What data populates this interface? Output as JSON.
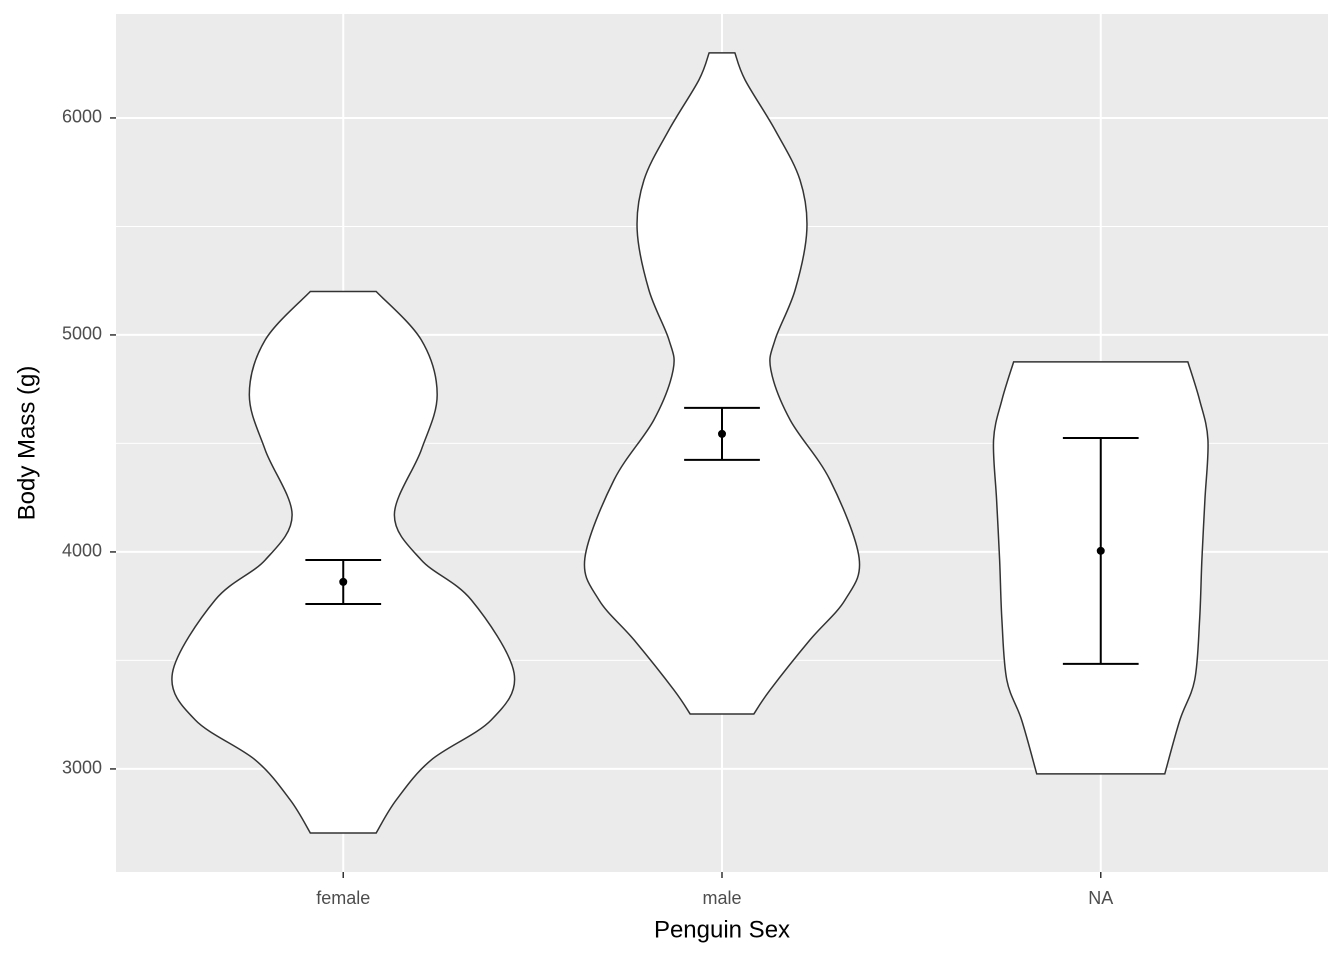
{
  "chart_data": {
    "type": "violin",
    "x_label": "Penguin Sex",
    "y_label": "Body Mass (g)",
    "categories": [
      "female",
      "male",
      "NA"
    ],
    "ylim": [
      2525,
      6479
    ],
    "yticks": [
      3000,
      4000,
      5000,
      6000
    ],
    "y_minor_ticks": [
      3500,
      4500,
      5500
    ],
    "grid": true,
    "violin_fill": "#ffffff",
    "violin_stroke": "#333333",
    "errorbar_color": "#000000",
    "errorbar_half_width": 0.1,
    "mean": [
      3862,
      4544,
      4005
    ],
    "upper": [
      3963,
      4664,
      4525
    ],
    "lower": [
      3760,
      4424,
      3484
    ],
    "violins": [
      {
        "y": [
          5200,
          4977,
          4724,
          4470,
          4171,
          3963,
          3779,
          3442,
          3226,
          3041,
          2857,
          2705
        ],
        "half_width": [
          0.087,
          0.206,
          0.248,
          0.206,
          0.135,
          0.206,
          0.338,
          0.451,
          0.391,
          0.232,
          0.14,
          0.087
        ]
      },
      {
        "y": [
          6300,
          6175,
          5945,
          5714,
          5484,
          5207,
          4977,
          4839,
          4608,
          4332,
          3972,
          3779,
          3594,
          3364,
          3253
        ],
        "half_width": [
          0.034,
          0.061,
          0.14,
          0.206,
          0.224,
          0.193,
          0.14,
          0.129,
          0.18,
          0.285,
          0.362,
          0.325,
          0.232,
          0.127,
          0.084
        ]
      },
      {
        "y": [
          4876,
          4700,
          4516,
          4240,
          3963,
          3687,
          3410,
          3226,
          2977
        ],
        "half_width": [
          0.23,
          0.261,
          0.283,
          0.275,
          0.267,
          0.261,
          0.248,
          0.209,
          0.169
        ]
      }
    ]
  }
}
